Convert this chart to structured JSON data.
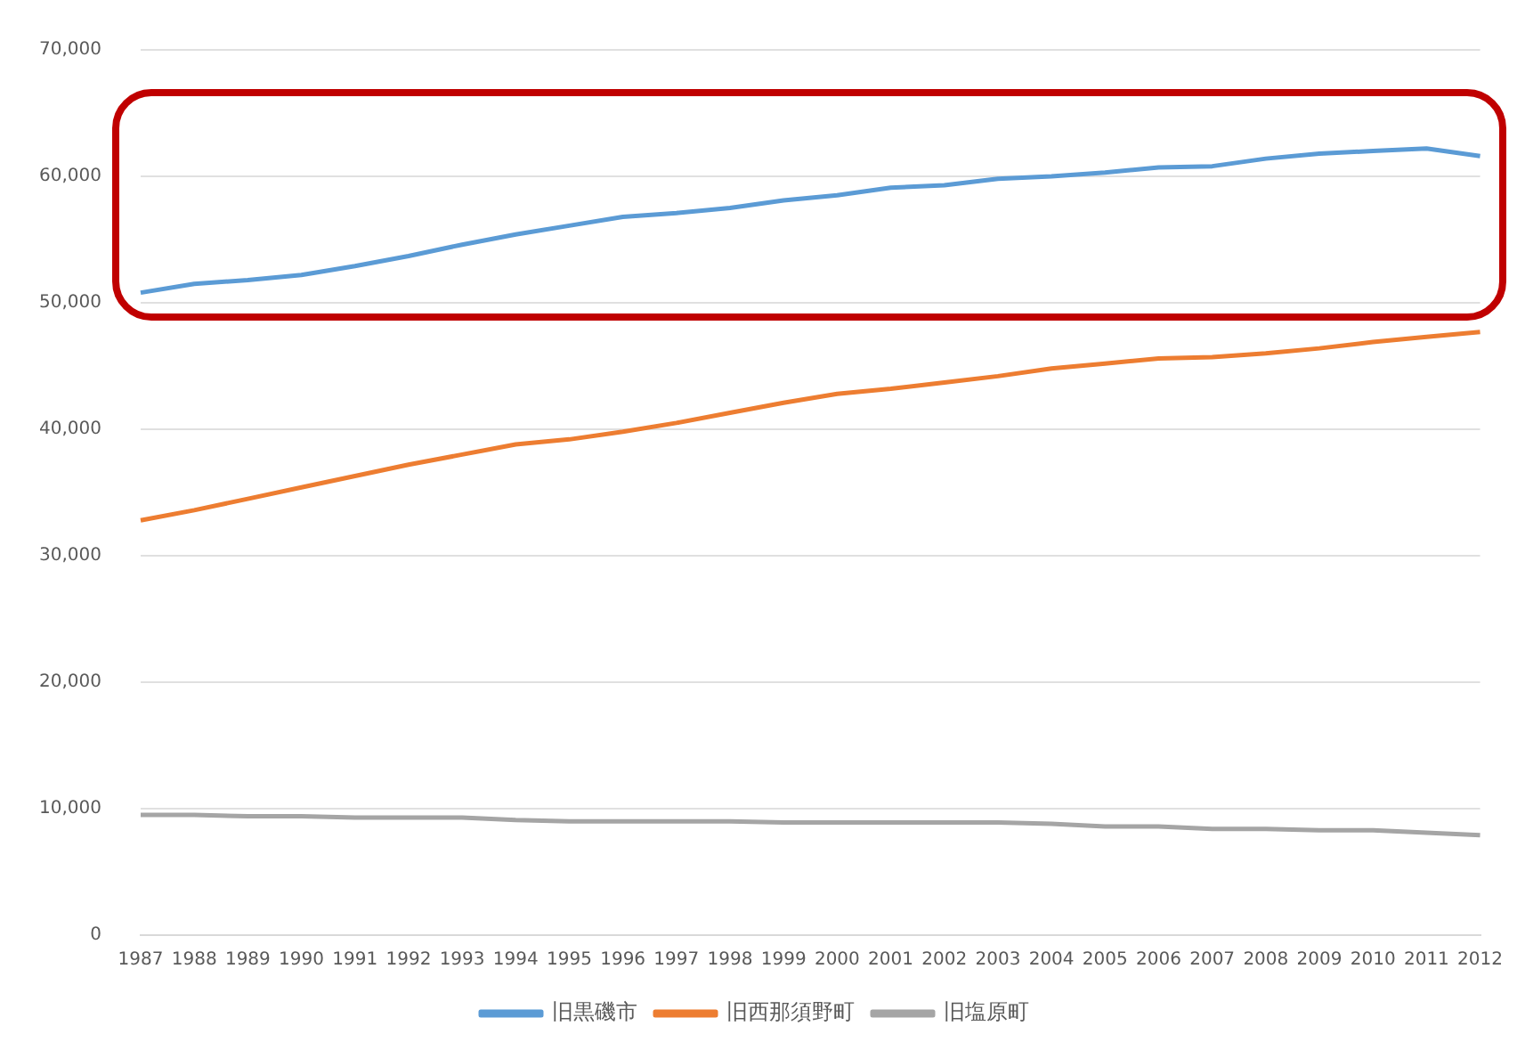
{
  "chart_data": {
    "type": "line",
    "categories": [
      "1987",
      "1988",
      "1989",
      "1990",
      "1991",
      "1992",
      "1993",
      "1994",
      "1995",
      "1996",
      "1997",
      "1998",
      "1999",
      "2000",
      "2001",
      "2002",
      "2003",
      "2004",
      "2005",
      "2006",
      "2007",
      "2008",
      "2009",
      "2010",
      "2011",
      "2012"
    ],
    "series": [
      {
        "name": "旧黒磯市",
        "color": "#5b9bd5",
        "values": [
          50800,
          51500,
          51800,
          52200,
          52900,
          53700,
          54600,
          55400,
          56100,
          56800,
          57100,
          57500,
          58100,
          58500,
          59100,
          59300,
          59800,
          60000,
          60300,
          60700,
          60800,
          61400,
          61800,
          62000,
          62200,
          61600
        ]
      },
      {
        "name": "旧西那須野町",
        "color": "#ed7d31",
        "values": [
          32800,
          33600,
          34500,
          35400,
          36300,
          37200,
          38000,
          38800,
          39200,
          39800,
          40500,
          41300,
          42100,
          42800,
          43200,
          43700,
          44200,
          44800,
          45200,
          45600,
          45700,
          46000,
          46400,
          46900,
          47300,
          47700
        ]
      },
      {
        "name": "旧塩原町",
        "color": "#a5a5a5",
        "values": [
          9500,
          9500,
          9400,
          9400,
          9300,
          9300,
          9300,
          9100,
          9000,
          9000,
          9000,
          9000,
          8900,
          8900,
          8900,
          8900,
          8900,
          8800,
          8600,
          8600,
          8400,
          8400,
          8300,
          8300,
          8100,
          7900
        ]
      }
    ],
    "ylim": [
      0,
      70000
    ],
    "yticks": [
      {
        "value": 0,
        "label": "0"
      },
      {
        "value": 10000,
        "label": "10,000"
      },
      {
        "value": 20000,
        "label": "20,000"
      },
      {
        "value": 30000,
        "label": "30,000"
      },
      {
        "value": 40000,
        "label": "40,000"
      },
      {
        "value": 50000,
        "label": "50,000"
      },
      {
        "value": 60000,
        "label": "60,000"
      },
      {
        "value": 70000,
        "label": "70,000"
      }
    ],
    "grid": "y",
    "legend": "bottom",
    "marker": "none",
    "line_style": "solid"
  }
}
